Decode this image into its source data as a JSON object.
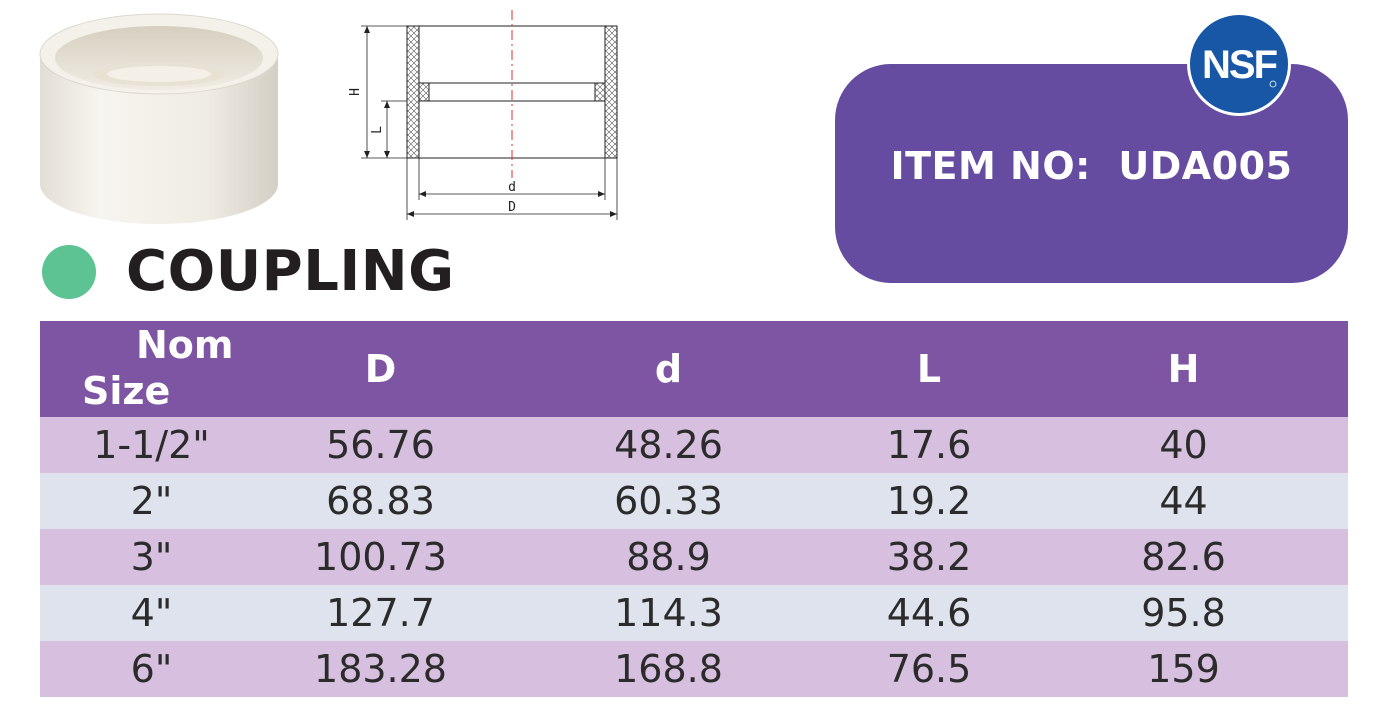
{
  "product": {
    "title": "COUPLING",
    "item_label": "ITEM NO:",
    "item_number": "UDA005"
  },
  "certification": {
    "logo_text": "NSF"
  },
  "drawing": {
    "dimension_labels": {
      "H": "H",
      "L": "L",
      "d": "d",
      "D": "D"
    }
  },
  "table": {
    "headers": {
      "nom_line1": "Nom",
      "nom_line2": "Size",
      "D": "D",
      "d": "d",
      "L": "L",
      "H": "H"
    },
    "rows": [
      [
        "1-1/2\"",
        "56.76",
        "48.26",
        "17.6",
        "40"
      ],
      [
        "2\"",
        "68.83",
        "60.33",
        "19.2",
        "44"
      ],
      [
        "3\"",
        "100.73",
        "88.9",
        "38.2",
        "82.6"
      ],
      [
        "4\"",
        "127.7",
        "114.3",
        "44.6",
        "95.8"
      ],
      [
        "6\"",
        "183.28",
        "168.8",
        "76.5",
        "159"
      ]
    ]
  },
  "colors": {
    "header_purple": "#7e55a3",
    "item_box_purple": "#654ca0",
    "row_purple": "#d6bfdf",
    "row_gray": "#dfe3ed",
    "accent_green": "#5ec393",
    "nsf_blue": "#1757a6"
  }
}
